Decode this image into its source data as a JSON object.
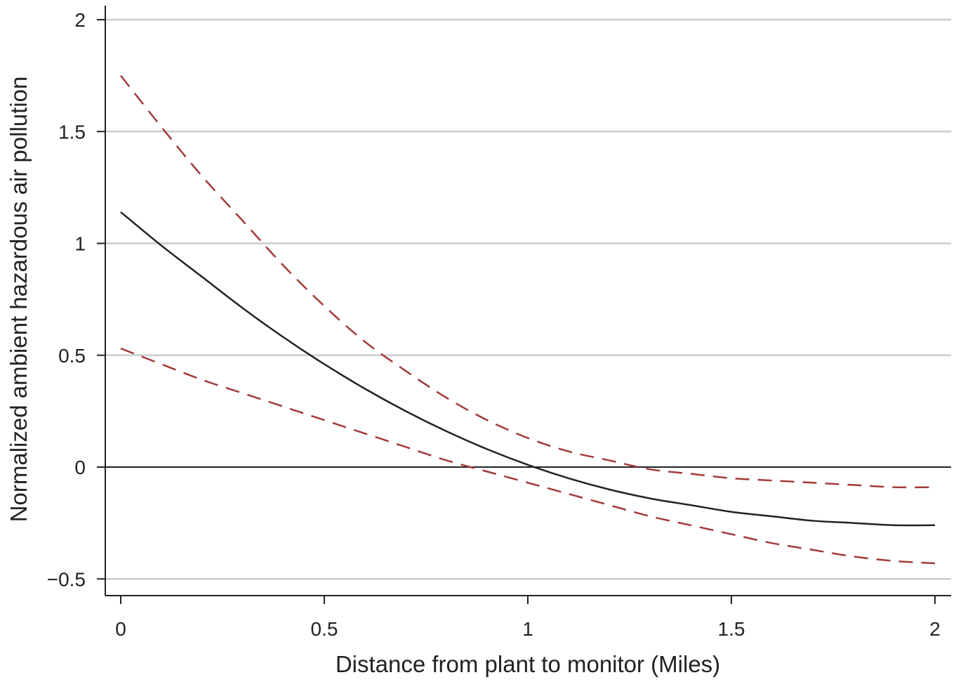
{
  "chart_data": {
    "type": "line",
    "title": "",
    "xlabel": "Distance from plant to monitor (Miles)",
    "ylabel": "Normalized ambient hazardous air pollution",
    "xlim": [
      0,
      2
    ],
    "ylim": [
      -0.5,
      2
    ],
    "x_ticks": [
      {
        "value": 0,
        "label": "0"
      },
      {
        "value": 0.5,
        "label": "0.5"
      },
      {
        "value": 1,
        "label": "1"
      },
      {
        "value": 1.5,
        "label": "1.5"
      },
      {
        "value": 2,
        "label": "2"
      }
    ],
    "y_ticks": [
      {
        "value": -0.5,
        "label": "−0.5"
      },
      {
        "value": 0,
        "label": "0"
      },
      {
        "value": 0.5,
        "label": "0.5"
      },
      {
        "value": 1,
        "label": "1"
      },
      {
        "value": 1.5,
        "label": "1.5"
      },
      {
        "value": 2,
        "label": "2"
      }
    ],
    "grid": "horizontal",
    "reference_line": {
      "y": 0,
      "color": "#222222"
    },
    "x": [
      0,
      0.1,
      0.2,
      0.3,
      0.4,
      0.5,
      0.6,
      0.7,
      0.8,
      0.9,
      1.0,
      1.1,
      1.2,
      1.3,
      1.4,
      1.5,
      1.6,
      1.7,
      1.8,
      1.9,
      2.0
    ],
    "series": [
      {
        "color": "#a33a3a",
        "dash": "dashed",
        "values": [
          1.75,
          1.52,
          1.3,
          1.1,
          0.9,
          0.72,
          0.56,
          0.43,
          0.31,
          0.21,
          0.13,
          0.07,
          0.03,
          -0.01,
          -0.03,
          -0.05,
          -0.06,
          -0.07,
          -0.08,
          -0.09,
          -0.09
        ]
      },
      {
        "color": "#222222",
        "dash": "solid",
        "values": [
          1.14,
          0.99,
          0.85,
          0.71,
          0.58,
          0.46,
          0.35,
          0.25,
          0.16,
          0.08,
          0.01,
          -0.05,
          -0.1,
          -0.14,
          -0.17,
          -0.2,
          -0.22,
          -0.24,
          -0.25,
          -0.26,
          -0.26
        ]
      },
      {
        "color": "#a33a3a",
        "dash": "dashed",
        "values": [
          0.53,
          0.46,
          0.39,
          0.33,
          0.27,
          0.21,
          0.15,
          0.09,
          0.03,
          -0.02,
          -0.07,
          -0.12,
          -0.17,
          -0.22,
          -0.26,
          -0.3,
          -0.34,
          -0.37,
          -0.4,
          -0.42,
          -0.43
        ]
      }
    ]
  }
}
